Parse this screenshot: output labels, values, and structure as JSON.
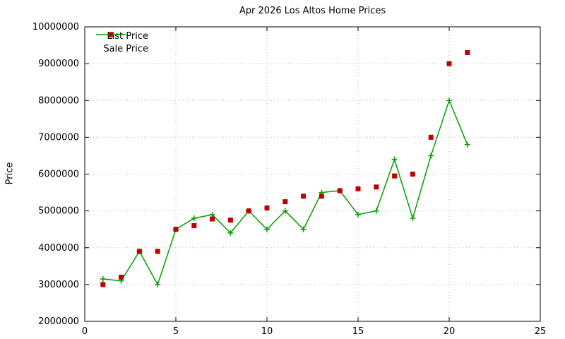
{
  "chart_data": {
    "type": "line",
    "title": "Apr 2026 Los Altos Home Prices",
    "xlabel": "",
    "ylabel": "Price",
    "xlim": [
      0,
      25
    ],
    "ylim": [
      2000000,
      10000000
    ],
    "x_ticks": [
      0,
      5,
      10,
      15,
      20,
      25
    ],
    "y_ticks": [
      2000000,
      3000000,
      4000000,
      5000000,
      6000000,
      7000000,
      8000000,
      9000000,
      10000000
    ],
    "grid": true,
    "legend_position": "top-left-inside",
    "x": [
      1,
      2,
      3,
      4,
      5,
      6,
      7,
      8,
      9,
      10,
      11,
      12,
      13,
      14,
      15,
      16,
      17,
      18,
      19,
      20,
      21
    ],
    "series": [
      {
        "name": "List Price",
        "type": "line",
        "marker": "plus",
        "color": "#00a000",
        "values": [
          3150000,
          3100000,
          3900000,
          3000000,
          4500000,
          4800000,
          4900000,
          4400000,
          5000000,
          4500000,
          5000000,
          4500000,
          5500000,
          5550000,
          4900000,
          5000000,
          6400000,
          4800000,
          6500000,
          8000000,
          6800000
        ]
      },
      {
        "name": "Sale Price",
        "type": "scatter",
        "marker": "square",
        "color": "#c00000",
        "values": [
          3000000,
          3200000,
          3900000,
          3900000,
          4500000,
          4600000,
          4780000,
          4750000,
          5000000,
          5080000,
          5250000,
          5400000,
          5400000,
          5550000,
          5600000,
          5650000,
          5950000,
          6000000,
          7000000,
          9000000,
          9300000
        ]
      }
    ],
    "colors": {
      "grid": "#b8b8b8",
      "axis": "#000000",
      "text": "#000000",
      "background": "#ffffff"
    }
  }
}
